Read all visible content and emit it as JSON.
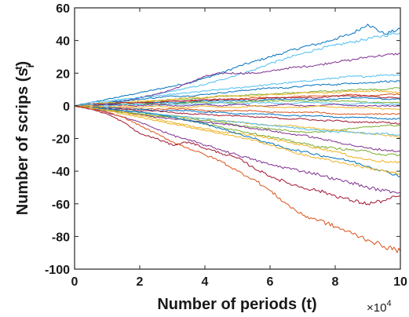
{
  "chart_data": {
    "type": "line",
    "title": "",
    "xlabel": "Number of periods (t)",
    "ylabel_main": "Number of scrips (s",
    "ylabel_sup": "t",
    "ylabel_sub": "i",
    "ylabel_close": ")",
    "x_exponent_base": "×10",
    "x_exponent": "4",
    "xlim": [
      0,
      10
    ],
    "ylim": [
      -100,
      60
    ],
    "xticks": [
      "0",
      "2",
      "4",
      "6",
      "8",
      "10"
    ],
    "yticks": [
      "-100",
      "-80",
      "-60",
      "-40",
      "-20",
      "0",
      "20",
      "40",
      "60"
    ],
    "grid": false,
    "legend": "none",
    "x": [
      0,
      0.5,
      1,
      1.5,
      2,
      2.5,
      3,
      3.5,
      4,
      4.5,
      5,
      5.5,
      6,
      6.5,
      7,
      7.5,
      8,
      8.5,
      9,
      9.5,
      10
    ],
    "series": [
      {
        "color": "#0072BD",
        "values": [
          0,
          2,
          4,
          6,
          8,
          10,
          12,
          14,
          17,
          20,
          24,
          27,
          30,
          33,
          36,
          38,
          41,
          44,
          50,
          44,
          47
        ]
      },
      {
        "color": "#4DBEEE",
        "values": [
          0,
          1,
          2,
          4,
          5,
          7,
          9,
          11,
          13,
          16,
          19,
          22,
          26,
          29,
          32,
          35,
          37,
          39,
          41,
          43,
          45
        ]
      },
      {
        "color": "#7E2F8E",
        "values": [
          0,
          1,
          2,
          3,
          5,
          7,
          10,
          14,
          18,
          20,
          20,
          20,
          21,
          23,
          24,
          25,
          27,
          28,
          30,
          31,
          32
        ]
      },
      {
        "color": "#4DBEEE",
        "values": [
          0,
          2,
          3,
          4,
          5,
          6,
          7,
          8,
          9,
          10,
          11,
          12,
          13,
          14,
          15,
          16,
          17,
          18,
          18,
          19,
          19
        ]
      },
      {
        "color": "#0072BD",
        "values": [
          0,
          1,
          2,
          3,
          4,
          5,
          6,
          6,
          7,
          8,
          9,
          10,
          11,
          11,
          12,
          13,
          13,
          14,
          14,
          15,
          15
        ]
      },
      {
        "color": "#77AC30",
        "values": [
          0,
          1,
          1,
          2,
          2,
          3,
          4,
          4,
          5,
          6,
          6,
          7,
          7,
          8,
          8,
          9,
          9,
          10,
          10,
          10,
          11
        ]
      },
      {
        "color": "#EDB120",
        "values": [
          0,
          1,
          2,
          2,
          3,
          3,
          4,
          5,
          5,
          6,
          6,
          6,
          7,
          7,
          8,
          8,
          8,
          9,
          9,
          9,
          8
        ]
      },
      {
        "color": "#D95319",
        "values": [
          0,
          0,
          1,
          1,
          2,
          2,
          3,
          3,
          3,
          4,
          4,
          5,
          5,
          5,
          6,
          6,
          6,
          7,
          6,
          7,
          7
        ]
      },
      {
        "color": "#A2142F",
        "values": [
          0,
          1,
          1,
          2,
          2,
          2,
          3,
          3,
          4,
          4,
          4,
          4,
          5,
          5,
          5,
          5,
          6,
          6,
          6,
          5,
          5
        ]
      },
      {
        "color": "#0072BD",
        "values": [
          0,
          0,
          1,
          1,
          1,
          2,
          2,
          2,
          3,
          3,
          3,
          3,
          4,
          4,
          4,
          4,
          4,
          5,
          5,
          4,
          4
        ]
      },
      {
        "color": "#77AC30",
        "values": [
          0,
          0,
          0,
          1,
          1,
          1,
          1,
          2,
          2,
          2,
          2,
          3,
          3,
          3,
          3,
          3,
          3,
          3,
          2,
          2,
          2
        ]
      },
      {
        "color": "#4DBEEE",
        "values": [
          0,
          1,
          0,
          1,
          1,
          0,
          1,
          1,
          1,
          2,
          1,
          2,
          2,
          1,
          2,
          2,
          1,
          1,
          2,
          1,
          1
        ]
      },
      {
        "color": "#7E2F8E",
        "values": [
          0,
          0,
          1,
          0,
          0,
          1,
          0,
          0,
          1,
          0,
          1,
          0,
          0,
          1,
          0,
          0,
          1,
          0,
          0,
          0,
          0
        ]
      },
      {
        "color": "#EDB120",
        "values": [
          0,
          0,
          -1,
          0,
          -1,
          0,
          -1,
          -1,
          0,
          -1,
          -1,
          0,
          -1,
          -1,
          -1,
          0,
          -1,
          -1,
          -1,
          -2,
          -2
        ]
      },
      {
        "color": "#D95319",
        "values": [
          0,
          -1,
          -1,
          -1,
          -2,
          -2,
          -2,
          -2,
          -3,
          -3,
          -3,
          -3,
          -4,
          -4,
          -4,
          -4,
          -5,
          -5,
          -5,
          -5,
          -5
        ]
      },
      {
        "color": "#0072BD",
        "values": [
          0,
          -1,
          -1,
          -2,
          -2,
          -3,
          -3,
          -3,
          -4,
          -4,
          -5,
          -5,
          -5,
          -6,
          -6,
          -6,
          -7,
          -7,
          -7,
          -8,
          -8
        ]
      },
      {
        "color": "#A2142F",
        "values": [
          0,
          -1,
          -2,
          -2,
          -3,
          -3,
          -4,
          -5,
          -5,
          -6,
          -6,
          -7,
          -7,
          -8,
          -8,
          -9,
          -9,
          -10,
          -10,
          -10,
          -11
        ]
      },
      {
        "color": "#77AC30",
        "values": [
          0,
          -1,
          -2,
          -3,
          -4,
          -5,
          -6,
          -8,
          -9,
          -10,
          -12,
          -13,
          -14,
          -15,
          -16,
          -16,
          -15,
          -14,
          -13,
          -12,
          -12
        ]
      },
      {
        "color": "#EDB120",
        "values": [
          0,
          -1,
          -2,
          -4,
          -5,
          -6,
          -6,
          -7,
          -8,
          -9,
          -10,
          -11,
          -12,
          -12,
          -13,
          -14,
          -15,
          -16,
          -17,
          -18,
          -19
        ]
      },
      {
        "color": "#4DBEEE",
        "values": [
          0,
          -1,
          -2,
          -3,
          -4,
          -5,
          -6,
          -7,
          -8,
          -9,
          -10,
          -11,
          -12,
          -13,
          -14,
          -15,
          -16,
          -16,
          -17,
          -17,
          -18
        ]
      },
      {
        "color": "#7E2F8E",
        "values": [
          0,
          -2,
          -3,
          -4,
          -5,
          -7,
          -8,
          -9,
          -10,
          -11,
          -12,
          -14,
          -15,
          -17,
          -18,
          -20,
          -22,
          -24,
          -26,
          -27,
          -28
        ]
      },
      {
        "color": "#77AC30",
        "values": [
          0,
          -1,
          -3,
          -4,
          -5,
          -6,
          -7,
          -9,
          -11,
          -13,
          -15,
          -17,
          -19,
          -21,
          -23,
          -25,
          -26,
          -27,
          -28,
          -30,
          -30
        ]
      },
      {
        "color": "#EDB120",
        "values": [
          0,
          -1,
          -2,
          -4,
          -6,
          -8,
          -10,
          -12,
          -14,
          -16,
          -17,
          -18,
          -20,
          -22,
          -24,
          -26,
          -28,
          -31,
          -33,
          -34,
          -35
        ]
      },
      {
        "color": "#0072BD",
        "values": [
          0,
          -1,
          -2,
          -3,
          -4,
          -5,
          -7,
          -9,
          -11,
          -14,
          -17,
          -20,
          -23,
          -26,
          -28,
          -30,
          -32,
          -34,
          -37,
          -40,
          -43
        ]
      },
      {
        "color": "#EDB120",
        "values": [
          0,
          -1,
          -3,
          -5,
          -7,
          -9,
          -11,
          -13,
          -15,
          -17,
          -19,
          -21,
          -24,
          -27,
          -30,
          -32,
          -34,
          -36,
          -38,
          -40,
          -42
        ]
      },
      {
        "color": "#7E2F8E",
        "values": [
          0,
          -2,
          -4,
          -7,
          -10,
          -14,
          -18,
          -21,
          -24,
          -27,
          -30,
          -33,
          -36,
          -38,
          -40,
          -42,
          -45,
          -47,
          -50,
          -52,
          -53
        ]
      },
      {
        "color": "#A2142F",
        "values": [
          0,
          -2,
          -5,
          -10,
          -17,
          -20,
          -24,
          -22,
          -26,
          -29,
          -32,
          -38,
          -43,
          -47,
          -50,
          -52,
          -55,
          -58,
          -60,
          -58,
          -55
        ]
      },
      {
        "color": "#D95319",
        "values": [
          0,
          -2,
          -4,
          -7,
          -12,
          -17,
          -22,
          -26,
          -30,
          -34,
          -40,
          -45,
          -52,
          -60,
          -67,
          -70,
          -74,
          -78,
          -82,
          -86,
          -89
        ]
      }
    ]
  }
}
